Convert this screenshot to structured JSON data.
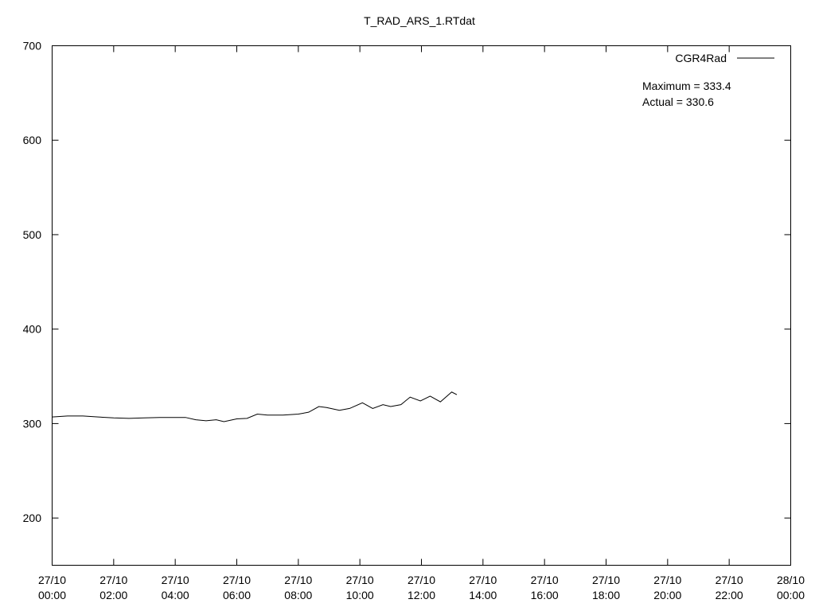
{
  "chart_data": {
    "type": "line",
    "title": "T_RAD_ARS_1.RTdat",
    "annotations": [
      "Maximum = 333.4",
      "Actual = 330.6"
    ],
    "x": [
      "27/10 00:00",
      "27/10 00:30",
      "27/10 01:00",
      "27/10 01:30",
      "27/10 02:00",
      "27/10 02:30",
      "27/10 03:00",
      "27/10 03:30",
      "27/10 04:00",
      "27/10 04:20",
      "27/10 04:40",
      "27/10 05:00",
      "27/10 05:20",
      "27/10 05:35",
      "27/10 06:00",
      "27/10 06:20",
      "27/10 06:40",
      "27/10 07:00",
      "27/10 07:30",
      "27/10 08:00",
      "27/10 08:20",
      "27/10 08:40",
      "27/10 08:55",
      "27/10 09:20",
      "27/10 09:40",
      "27/10 10:05",
      "27/10 10:25",
      "27/10 10:45",
      "27/10 11:00",
      "27/10 11:20",
      "27/10 11:38",
      "27/10 11:58",
      "27/10 12:17",
      "27/10 12:37",
      "27/10 12:59",
      "27/10 13:09"
    ],
    "series": [
      {
        "name": "CGR4Rad",
        "color": "#000000",
        "values": [
          307,
          308,
          308,
          307,
          306,
          305.5,
          306,
          306.5,
          306.5,
          306.5,
          304,
          303,
          304,
          302,
          305,
          305.5,
          310,
          309,
          309,
          310,
          312,
          318,
          317,
          314,
          316,
          322,
          316,
          320,
          318,
          320,
          328,
          324,
          329,
          323,
          333.4,
          330.6
        ]
      }
    ],
    "xlim": [
      "27/10 00:00",
      "28/10 00:00"
    ],
    "xticks": [
      "27/10 00:00",
      "27/10 02:00",
      "27/10 04:00",
      "27/10 06:00",
      "27/10 08:00",
      "27/10 10:00",
      "27/10 12:00",
      "27/10 14:00",
      "27/10 16:00",
      "27/10 18:00",
      "27/10 20:00",
      "27/10 22:00",
      "28/10 00:00"
    ],
    "ylim": [
      150,
      700
    ],
    "yticks": [
      200,
      300,
      400,
      500,
      600,
      700
    ],
    "legend": "top-right"
  }
}
